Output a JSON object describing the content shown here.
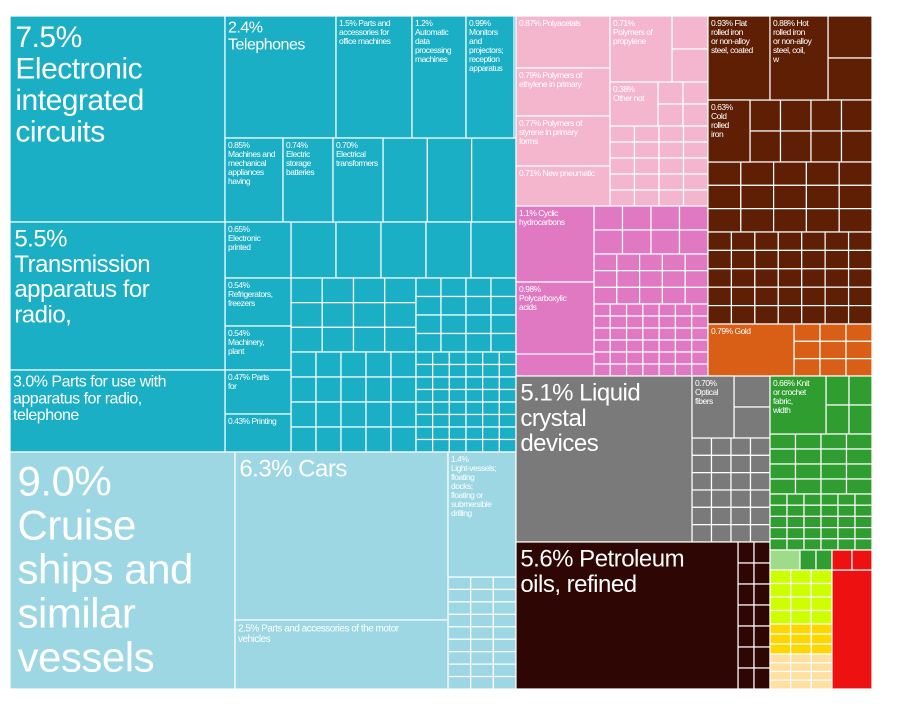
{
  "chart_data": {
    "type": "treemap",
    "title": "",
    "value_unit": "% of exports",
    "colors": {
      "electronics": "#1aafc4",
      "vehicles": "#9cd7e3",
      "plastics": "#f4b6cc",
      "chemicals": "#e078c2",
      "metals": "#5e1f05",
      "gold": "#d95f16",
      "instruments": "#7a7a7a",
      "mineral": "#2e0604",
      "textiles": "#2f9d2f",
      "textiles_light": "#9fdc8a",
      "lime": "#ccff00",
      "yellow": "#ffd700",
      "peach": "#ffe0a0",
      "red": "#ee1111"
    },
    "tiles": [
      {
        "id": "t0",
        "pct_label": "7.5%",
        "name": "Electronic integrated circuits",
        "value": 7.5,
        "group": "electronics"
      },
      {
        "id": "t1",
        "pct_label": "2.4%",
        "name": "Telephones",
        "value": 2.4,
        "group": "electronics"
      },
      {
        "id": "t2",
        "pct_label": "1.5%",
        "name": "Parts and accessories for office machines",
        "value": 1.5,
        "group": "electronics"
      },
      {
        "id": "t3",
        "pct_label": "1.2%",
        "name": "Automatic data processing machines",
        "value": 1.2,
        "group": "electronics"
      },
      {
        "id": "t4",
        "pct_label": "0.99%",
        "name": "Monitors and projectors; reception apparatus",
        "value": 0.99,
        "group": "electronics"
      },
      {
        "id": "t5",
        "pct_label": "0.85%",
        "name": "Machines and mechanical appliances having",
        "value": 0.85,
        "group": "electronics"
      },
      {
        "id": "t6",
        "pct_label": "0.74%",
        "name": "Electric storage batteries",
        "value": 0.74,
        "group": "electronics"
      },
      {
        "id": "t7",
        "pct_label": "0.70%",
        "name": "Electrical transformers",
        "value": 0.7,
        "group": "electronics"
      },
      {
        "id": "t8",
        "pct_label": "0.65%",
        "name": "Electronic printed",
        "value": 0.65,
        "group": "electronics"
      },
      {
        "id": "t9",
        "pct_label": "0.54%",
        "name": "Refrigerators, freezers",
        "value": 0.54,
        "group": "electronics"
      },
      {
        "id": "t10",
        "pct_label": "0.54%",
        "name": "Machinery, plant",
        "value": 0.54,
        "group": "electronics"
      },
      {
        "id": "t11",
        "pct_label": "0.47%",
        "name": "Parts for",
        "value": 0.47,
        "group": "electronics"
      },
      {
        "id": "t12",
        "pct_label": "0.43%",
        "name": "Printing",
        "value": 0.43,
        "group": "electronics"
      },
      {
        "id": "t13",
        "pct_label": "5.5%",
        "name": "Transmission apparatus for radio,",
        "value": 5.5,
        "group": "electronics"
      },
      {
        "id": "t14",
        "pct_label": "3.0%",
        "name": "Parts for use with apparatus for radio, telephone",
        "value": 3.0,
        "group": "electronics"
      },
      {
        "id": "t15",
        "pct_label": "9.0%",
        "name": "Cruise ships and similar vessels for the transport",
        "value": 9.0,
        "group": "vehicles"
      },
      {
        "id": "t16",
        "pct_label": "6.3%",
        "name": "Cars",
        "value": 6.3,
        "group": "vehicles"
      },
      {
        "id": "t17",
        "pct_label": "2.5%",
        "name": "Parts and accessories of the motor vehicles",
        "value": 2.5,
        "group": "vehicles"
      },
      {
        "id": "t18",
        "pct_label": "1.4%",
        "name": "Light-vessels; floating docks; floating or submersible drilling",
        "value": 1.4,
        "group": "vehicles"
      },
      {
        "id": "t19",
        "pct_label": "0.87%",
        "name": "Polyacetals",
        "value": 0.87,
        "group": "plastics"
      },
      {
        "id": "t20",
        "pct_label": "0.71%",
        "name": "Polymers of propylene",
        "value": 0.71,
        "group": "plastics"
      },
      {
        "id": "t21",
        "pct_label": "0.79%",
        "name": "Polymers of ethylene in primary",
        "value": 0.79,
        "group": "plastics"
      },
      {
        "id": "t22",
        "pct_label": "0.38%",
        "name": "Other not",
        "value": 0.38,
        "group": "plastics"
      },
      {
        "id": "t23",
        "pct_label": "0.77%",
        "name": "Polymers of styrene in primary forms",
        "value": 0.77,
        "group": "plastics"
      },
      {
        "id": "t24",
        "pct_label": "0.71%",
        "name": "New pneumatic",
        "value": 0.71,
        "group": "plastics"
      },
      {
        "id": "t25",
        "pct_label": "1.1%",
        "name": "Cyclic hydrocarbons",
        "value": 1.1,
        "group": "chemicals"
      },
      {
        "id": "t26",
        "pct_label": "0.98%",
        "name": "Polycarboxylic acids",
        "value": 0.98,
        "group": "chemicals"
      },
      {
        "id": "t27",
        "pct_label": "0.93%",
        "name": "Flat rolled iron or non-alloy steel, coated",
        "value": 0.93,
        "group": "metals"
      },
      {
        "id": "t28",
        "pct_label": "0.88%",
        "name": "Hot rolled iron or non-alloy steel, coil, w",
        "value": 0.88,
        "group": "metals"
      },
      {
        "id": "t29",
        "pct_label": "0.63%",
        "name": "Cold rolled iron",
        "value": 0.63,
        "group": "metals"
      },
      {
        "id": "t30",
        "pct_label": "0.79%",
        "name": "Gold",
        "value": 0.79,
        "group": "gold"
      },
      {
        "id": "t31",
        "pct_label": "5.1%",
        "name": "Liquid crystal devices",
        "value": 5.1,
        "group": "instruments"
      },
      {
        "id": "t32",
        "pct_label": "0.70%",
        "name": "Optical fibers",
        "value": 0.7,
        "group": "instruments"
      },
      {
        "id": "t33",
        "pct_label": "5.6%",
        "name": "Petroleum oils, refined",
        "value": 5.6,
        "group": "mineral"
      },
      {
        "id": "t34",
        "pct_label": "0.66%",
        "name": "Knit or crochet fabric, width",
        "value": 0.66,
        "group": "textiles"
      }
    ]
  }
}
